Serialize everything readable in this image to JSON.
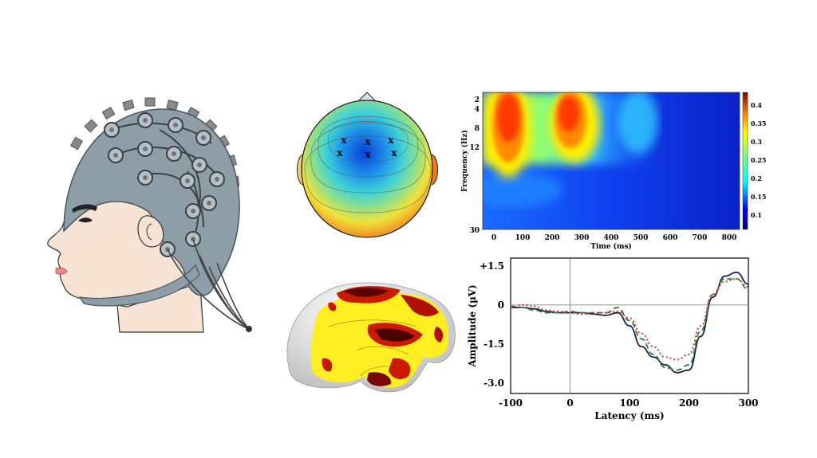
{
  "spectrogram": {
    "ylabel": "Frequency (Hz)",
    "xlabel": "Time (ms)",
    "y_ticks": [
      "2",
      "4",
      "8",
      "12",
      "30"
    ],
    "x_ticks": [
      "0",
      "100",
      "200",
      "300",
      "400",
      "500",
      "600",
      "700",
      "800"
    ],
    "colorbar_ticks": [
      "0.4",
      "0.35",
      "0.3",
      "0.25",
      "0.2",
      "0.15",
      "0.1"
    ]
  },
  "chart_data": {
    "type": "line",
    "title": "",
    "xlabel": "Latency (ms)",
    "ylabel": "Amplitude (µV)",
    "xlim": [
      -100,
      300
    ],
    "ylim": [
      -3.4,
      1.8
    ],
    "x_ticks": [
      "-100",
      "0",
      "100",
      "200",
      "300"
    ],
    "y_ticks": [
      "+1.5",
      "0",
      "-1.5",
      "-3.0"
    ],
    "x": [
      -100,
      -80,
      -60,
      -40,
      -20,
      0,
      20,
      40,
      60,
      80,
      100,
      120,
      140,
      160,
      180,
      200,
      220,
      240,
      260,
      280,
      300
    ],
    "series": [
      {
        "style": "solid",
        "color": "#1a1f5c",
        "values": [
          -0.1,
          -0.1,
          -0.15,
          -0.25,
          -0.3,
          -0.3,
          -0.3,
          -0.35,
          -0.4,
          -0.3,
          -0.8,
          -1.6,
          -2.0,
          -2.3,
          -2.6,
          -2.5,
          -1.2,
          0.3,
          1.1,
          1.25,
          0.8
        ]
      },
      {
        "style": "dashed",
        "color": "#2e7d3a",
        "values": [
          -0.05,
          -0.1,
          -0.2,
          -0.3,
          -0.3,
          -0.25,
          -0.3,
          -0.3,
          -0.3,
          -0.1,
          -0.6,
          -1.3,
          -1.9,
          -2.4,
          -2.5,
          -2.3,
          -1.0,
          0.4,
          1.0,
          1.0,
          0.6
        ]
      },
      {
        "style": "dotted",
        "color": "#e03a2a",
        "values": [
          -0.1,
          0.0,
          -0.05,
          -0.2,
          -0.25,
          -0.3,
          -0.35,
          -0.3,
          -0.3,
          -0.25,
          -0.5,
          -1.1,
          -1.6,
          -2.0,
          -2.1,
          -1.9,
          -0.8,
          0.4,
          0.9,
          1.0,
          0.7
        ]
      }
    ]
  }
}
